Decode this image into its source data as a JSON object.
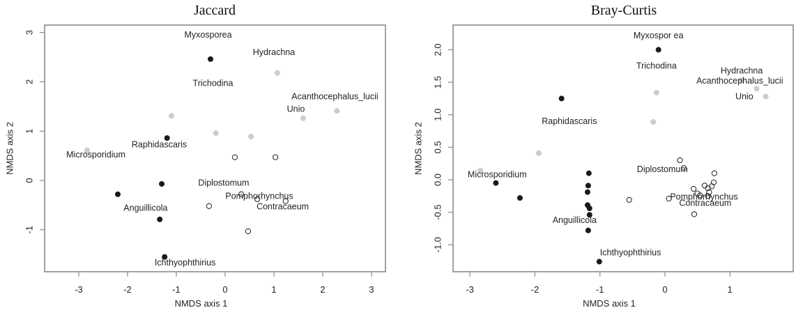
{
  "chart_data": [
    {
      "type": "scatter",
      "title": "Jaccard",
      "xlabel": "NMDS axis 1",
      "ylabel": "NMDS axis 2",
      "xlim": [
        -3.6,
        3.3
      ],
      "ylim": [
        -1.85,
        3.15
      ],
      "xticks": [
        -3,
        -2,
        -1,
        0,
        1,
        2,
        3
      ],
      "yticks": [
        -1,
        0,
        1,
        2,
        3
      ],
      "grid": false,
      "legend": null,
      "series": [
        {
          "name": "filled",
          "color": "#1a1a1a",
          "marker": "filled-circle",
          "points": [
            {
              "x": -0.3,
              "y": 2.46
            },
            {
              "x": -1.19,
              "y": 0.86
            },
            {
              "x": -1.3,
              "y": -0.07
            },
            {
              "x": -2.2,
              "y": -0.28
            },
            {
              "x": -1.34,
              "y": -0.79
            },
            {
              "x": -1.24,
              "y": -1.55
            }
          ]
        },
        {
          "name": "gray",
          "color": "#cccccc",
          "marker": "filled-circle",
          "points": [
            {
              "x": 1.07,
              "y": 2.18
            },
            {
              "x": -1.1,
              "y": 1.31
            },
            {
              "x": -0.19,
              "y": 0.96
            },
            {
              "x": 0.53,
              "y": 0.89
            },
            {
              "x": 1.6,
              "y": 1.26
            },
            {
              "x": 2.29,
              "y": 1.41
            },
            {
              "x": -2.83,
              "y": 0.61
            }
          ]
        },
        {
          "name": "open",
          "color": "#333333",
          "marker": "open-circle",
          "points": [
            {
              "x": 0.2,
              "y": 0.47
            },
            {
              "x": 1.03,
              "y": 0.47
            },
            {
              "x": 0.33,
              "y": -0.28
            },
            {
              "x": 0.66,
              "y": -0.38
            },
            {
              "x": 1.24,
              "y": -0.42
            },
            {
              "x": -0.33,
              "y": -0.52
            },
            {
              "x": 0.47,
              "y": -1.03
            }
          ]
        }
      ],
      "annotations": [
        {
          "text": "Myxosporea",
          "x": -0.35,
          "y": 2.95
        },
        {
          "text": "Hydrachna",
          "x": 1.0,
          "y": 2.6
        },
        {
          "text": "Trichodina",
          "x": -0.25,
          "y": 1.97
        },
        {
          "text": "Acanthocephalus_lucii",
          "x": 2.25,
          "y": 1.7
        },
        {
          "text": "Unio",
          "x": 1.45,
          "y": 1.45
        },
        {
          "text": "Raphidascaris",
          "x": -1.35,
          "y": 0.73
        },
        {
          "text": "Microsporidium",
          "x": -2.65,
          "y": 0.52
        },
        {
          "text": "Diplostomum",
          "x": -0.03,
          "y": -0.05
        },
        {
          "text": "Pomphorhynchus",
          "x": 0.7,
          "y": -0.32
        },
        {
          "text": "Contracaeum",
          "x": 1.18,
          "y": -0.53
        },
        {
          "text": "Anguillicola",
          "x": -1.63,
          "y": -0.56
        },
        {
          "text": "Ichthyophthirius",
          "x": -0.82,
          "y": -1.67
        }
      ]
    },
    {
      "type": "scatter",
      "title": "Bray-Curtis",
      "xlabel": "NMDS axis 1",
      "ylabel": "NMDS axis 2",
      "xlim": [
        -3.3,
        1.97
      ],
      "ylim": [
        -1.42,
        2.38
      ],
      "xticks": [
        -3,
        -2,
        -1,
        0,
        1
      ],
      "ytick_labels": [
        "-1.0",
        "-0.5",
        "0.0",
        "0.5",
        "1.0",
        "1.5",
        "2.0"
      ],
      "yticks": [
        -1.0,
        -0.5,
        0.0,
        0.5,
        1.0,
        1.5,
        2.0
      ],
      "grid": false,
      "legend": null,
      "series": [
        {
          "name": "filled",
          "color": "#1a1a1a",
          "marker": "filled-circle",
          "points": [
            {
              "x": -0.1,
              "y": 2.0
            },
            {
              "x": -1.59,
              "y": 1.25
            },
            {
              "x": -2.6,
              "y": -0.05
            },
            {
              "x": -2.23,
              "y": -0.28
            },
            {
              "x": -1.17,
              "y": 0.1
            },
            {
              "x": -1.18,
              "y": -0.09
            },
            {
              "x": -1.19,
              "y": -0.19
            },
            {
              "x": -1.19,
              "y": -0.39
            },
            {
              "x": -1.16,
              "y": -0.44
            },
            {
              "x": -1.16,
              "y": -0.54
            },
            {
              "x": -1.18,
              "y": -0.78
            },
            {
              "x": -1.01,
              "y": -1.26
            }
          ]
        },
        {
          "name": "gray",
          "color": "#cccccc",
          "marker": "filled-circle",
          "points": [
            {
              "x": -0.13,
              "y": 1.34
            },
            {
              "x": -0.18,
              "y": 0.89
            },
            {
              "x": 1.18,
              "y": 1.53
            },
            {
              "x": 1.41,
              "y": 1.4
            },
            {
              "x": 1.55,
              "y": 1.28
            },
            {
              "x": -1.94,
              "y": 0.41
            },
            {
              "x": -2.84,
              "y": 0.14
            }
          ]
        },
        {
          "name": "open",
          "color": "#333333",
          "marker": "open-circle",
          "points": [
            {
              "x": 0.23,
              "y": 0.3
            },
            {
              "x": 0.29,
              "y": 0.18
            },
            {
              "x": 0.76,
              "y": 0.1
            },
            {
              "x": 0.75,
              "y": -0.04
            },
            {
              "x": 0.72,
              "y": -0.1
            },
            {
              "x": 0.61,
              "y": -0.09
            },
            {
              "x": 0.66,
              "y": -0.13
            },
            {
              "x": 0.68,
              "y": -0.19
            },
            {
              "x": 0.44,
              "y": -0.14
            },
            {
              "x": 0.5,
              "y": -0.21
            },
            {
              "x": 0.54,
              "y": -0.24
            },
            {
              "x": 0.66,
              "y": -0.25
            },
            {
              "x": 0.06,
              "y": -0.29
            },
            {
              "x": -0.55,
              "y": -0.31
            },
            {
              "x": 0.45,
              "y": -0.53
            }
          ]
        }
      ],
      "annotations": [
        {
          "text": "Myxospor ea",
          "x": -0.1,
          "y": 2.22
        },
        {
          "text": "Trichodina",
          "x": -0.13,
          "y": 1.75
        },
        {
          "text": "Hydrachna",
          "x": 1.18,
          "y": 1.68
        },
        {
          "text": "Acanthocephalus_lucii",
          "x": 1.15,
          "y": 1.52
        },
        {
          "text": "Unio",
          "x": 1.22,
          "y": 1.28
        },
        {
          "text": "Raphidascaris",
          "x": -1.47,
          "y": 0.9
        },
        {
          "text": "Microsporidium",
          "x": -2.58,
          "y": 0.08
        },
        {
          "text": "Diplostomum",
          "x": -0.04,
          "y": 0.16
        },
        {
          "text": "Pomphorhynchus",
          "x": 0.6,
          "y": -0.26
        },
        {
          "text": "Contracaeum",
          "x": 0.62,
          "y": -0.36
        },
        {
          "text": "Anguillicola",
          "x": -1.39,
          "y": -0.62
        },
        {
          "text": "Ichthyophthirius",
          "x": -0.53,
          "y": -1.12
        }
      ]
    }
  ]
}
